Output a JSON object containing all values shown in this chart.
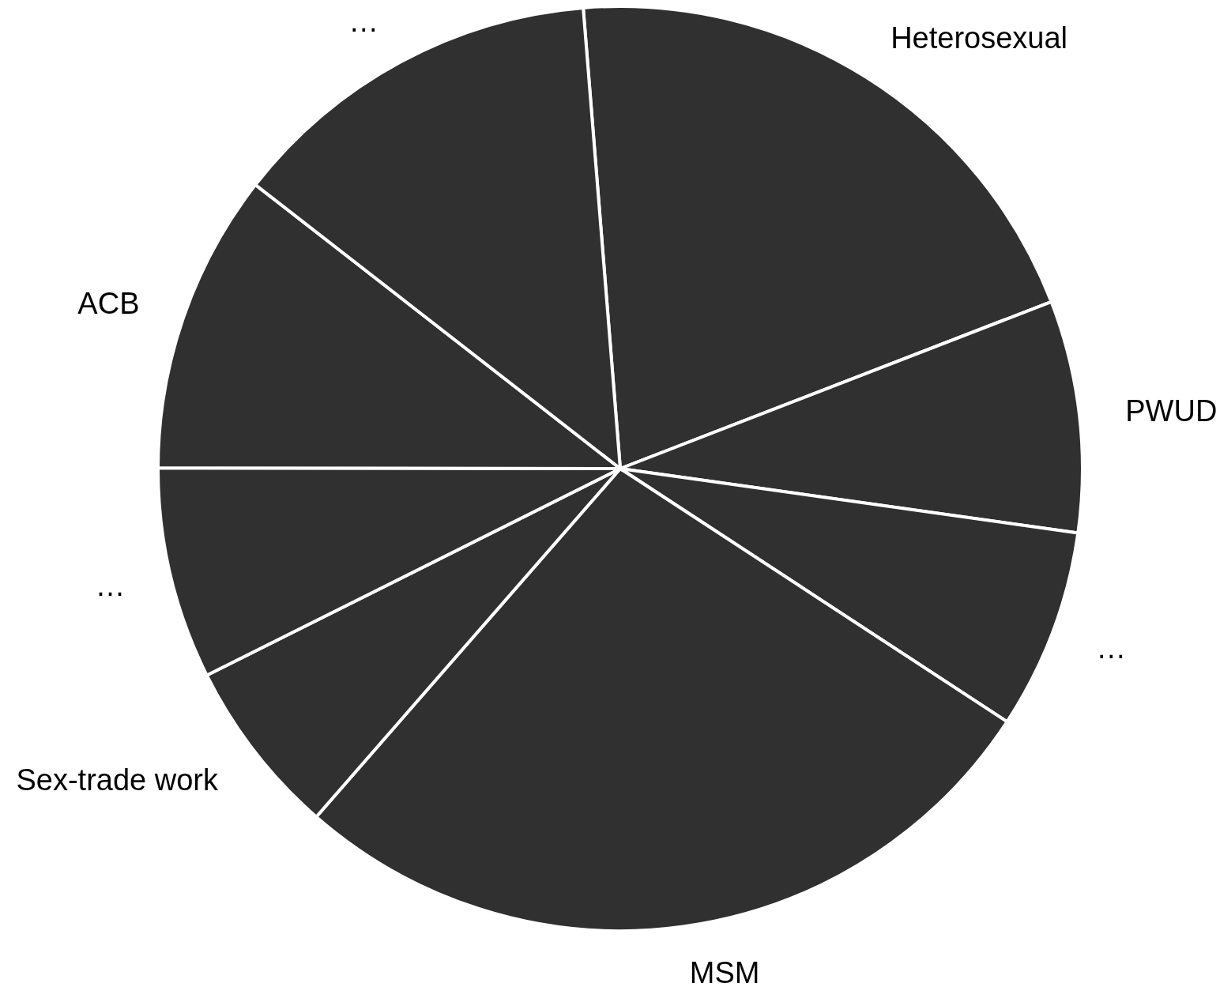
{
  "chart_data": {
    "type": "pie",
    "categories": [
      "Heterosexual",
      "PWUD",
      "…",
      "MSM",
      "Sex-trade work",
      "…",
      "ACB",
      "…"
    ],
    "values": [
      20.4,
      8.1,
      7.0,
      27.2,
      6.2,
      7.4,
      10.5,
      13.2
    ],
    "colors": [
      "#303030",
      "#303030",
      "#303030",
      "#303030",
      "#303030",
      "#303030",
      "#303030",
      "#303030"
    ],
    "legend": false
  }
}
